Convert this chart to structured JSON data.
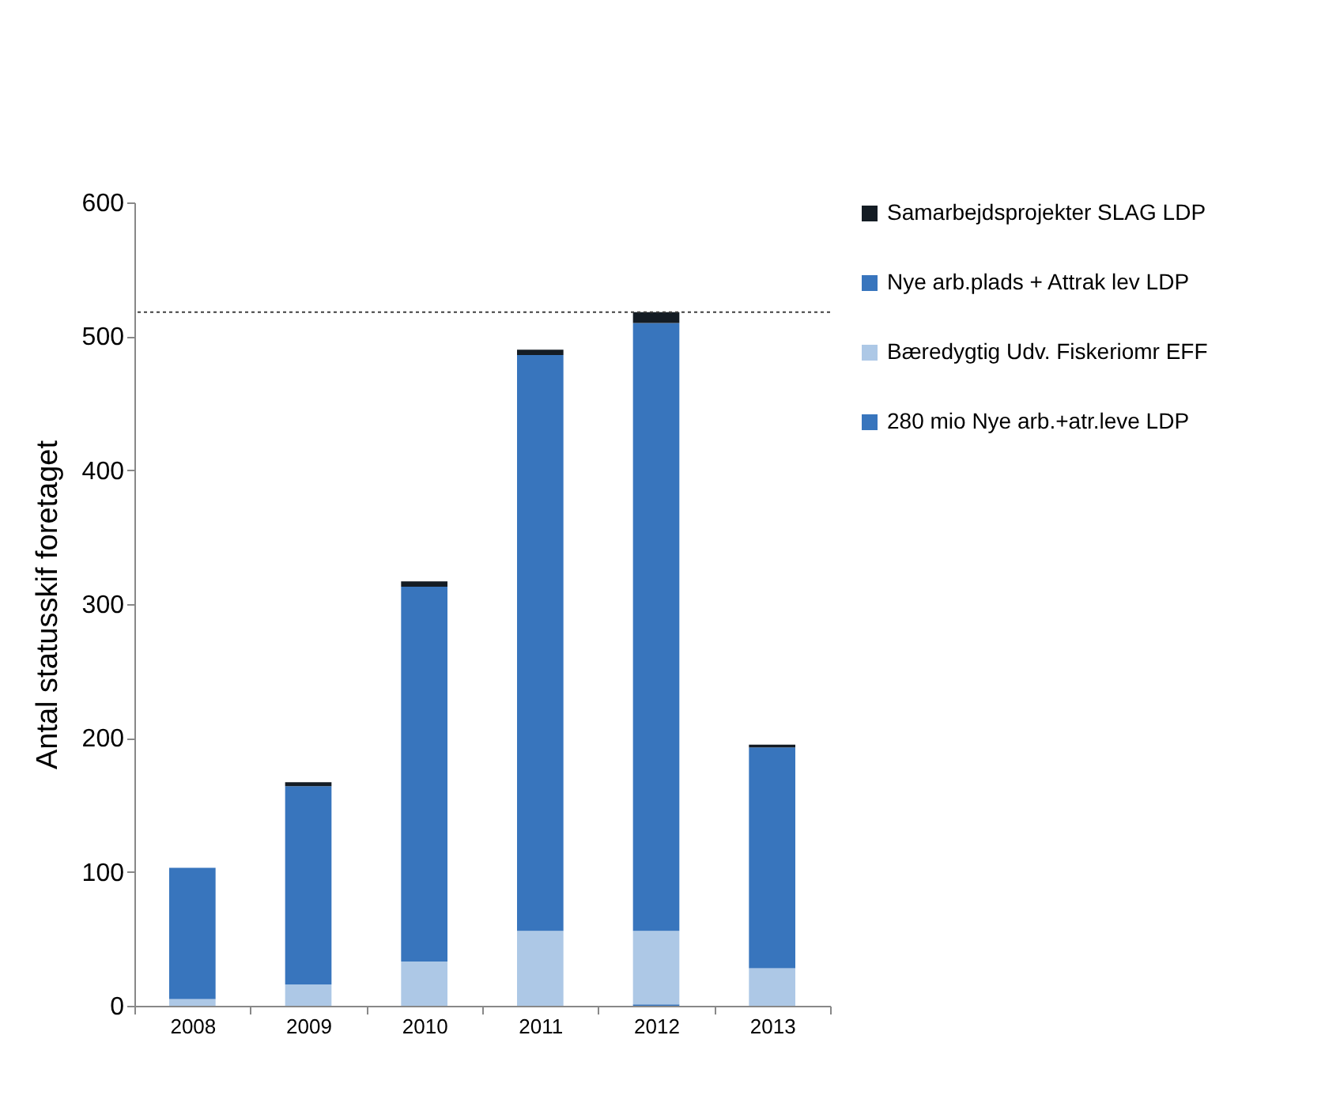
{
  "chart_data": {
    "type": "bar",
    "stacked": true,
    "ylabel": "Antal statusskif foretaget",
    "categories": [
      "2008",
      "2009",
      "2010",
      "2011",
      "2012",
      "2013"
    ],
    "series": [
      {
        "name": "280 mio Nye arb.+atr.leve LDP",
        "color": "#3875bd",
        "values": [
          0,
          0,
          0,
          0,
          1,
          0
        ]
      },
      {
        "name": "Bæredygtig Udv. Fiskeriomr EFF",
        "color": "#adc8e6",
        "values": [
          5,
          16,
          33,
          56,
          55,
          28
        ]
      },
      {
        "name": "Nye arb.plads + Attrak lev LDP",
        "color": "#3875bd",
        "values": [
          98,
          148,
          280,
          430,
          454,
          165
        ]
      },
      {
        "name": "Samarbejdsprojekter SLAG LDP",
        "color": "#141c24",
        "values": [
          0,
          3,
          4,
          4,
          8,
          2
        ]
      }
    ],
    "ylim": [
      0,
      600
    ],
    "yticks": [
      0,
      100,
      200,
      300,
      400,
      500,
      600
    ],
    "grid": false,
    "legend": "right",
    "ref_lines": [
      {
        "axis": "y",
        "value": 518,
        "line_style": "dotted",
        "color": "#404040"
      }
    ]
  }
}
